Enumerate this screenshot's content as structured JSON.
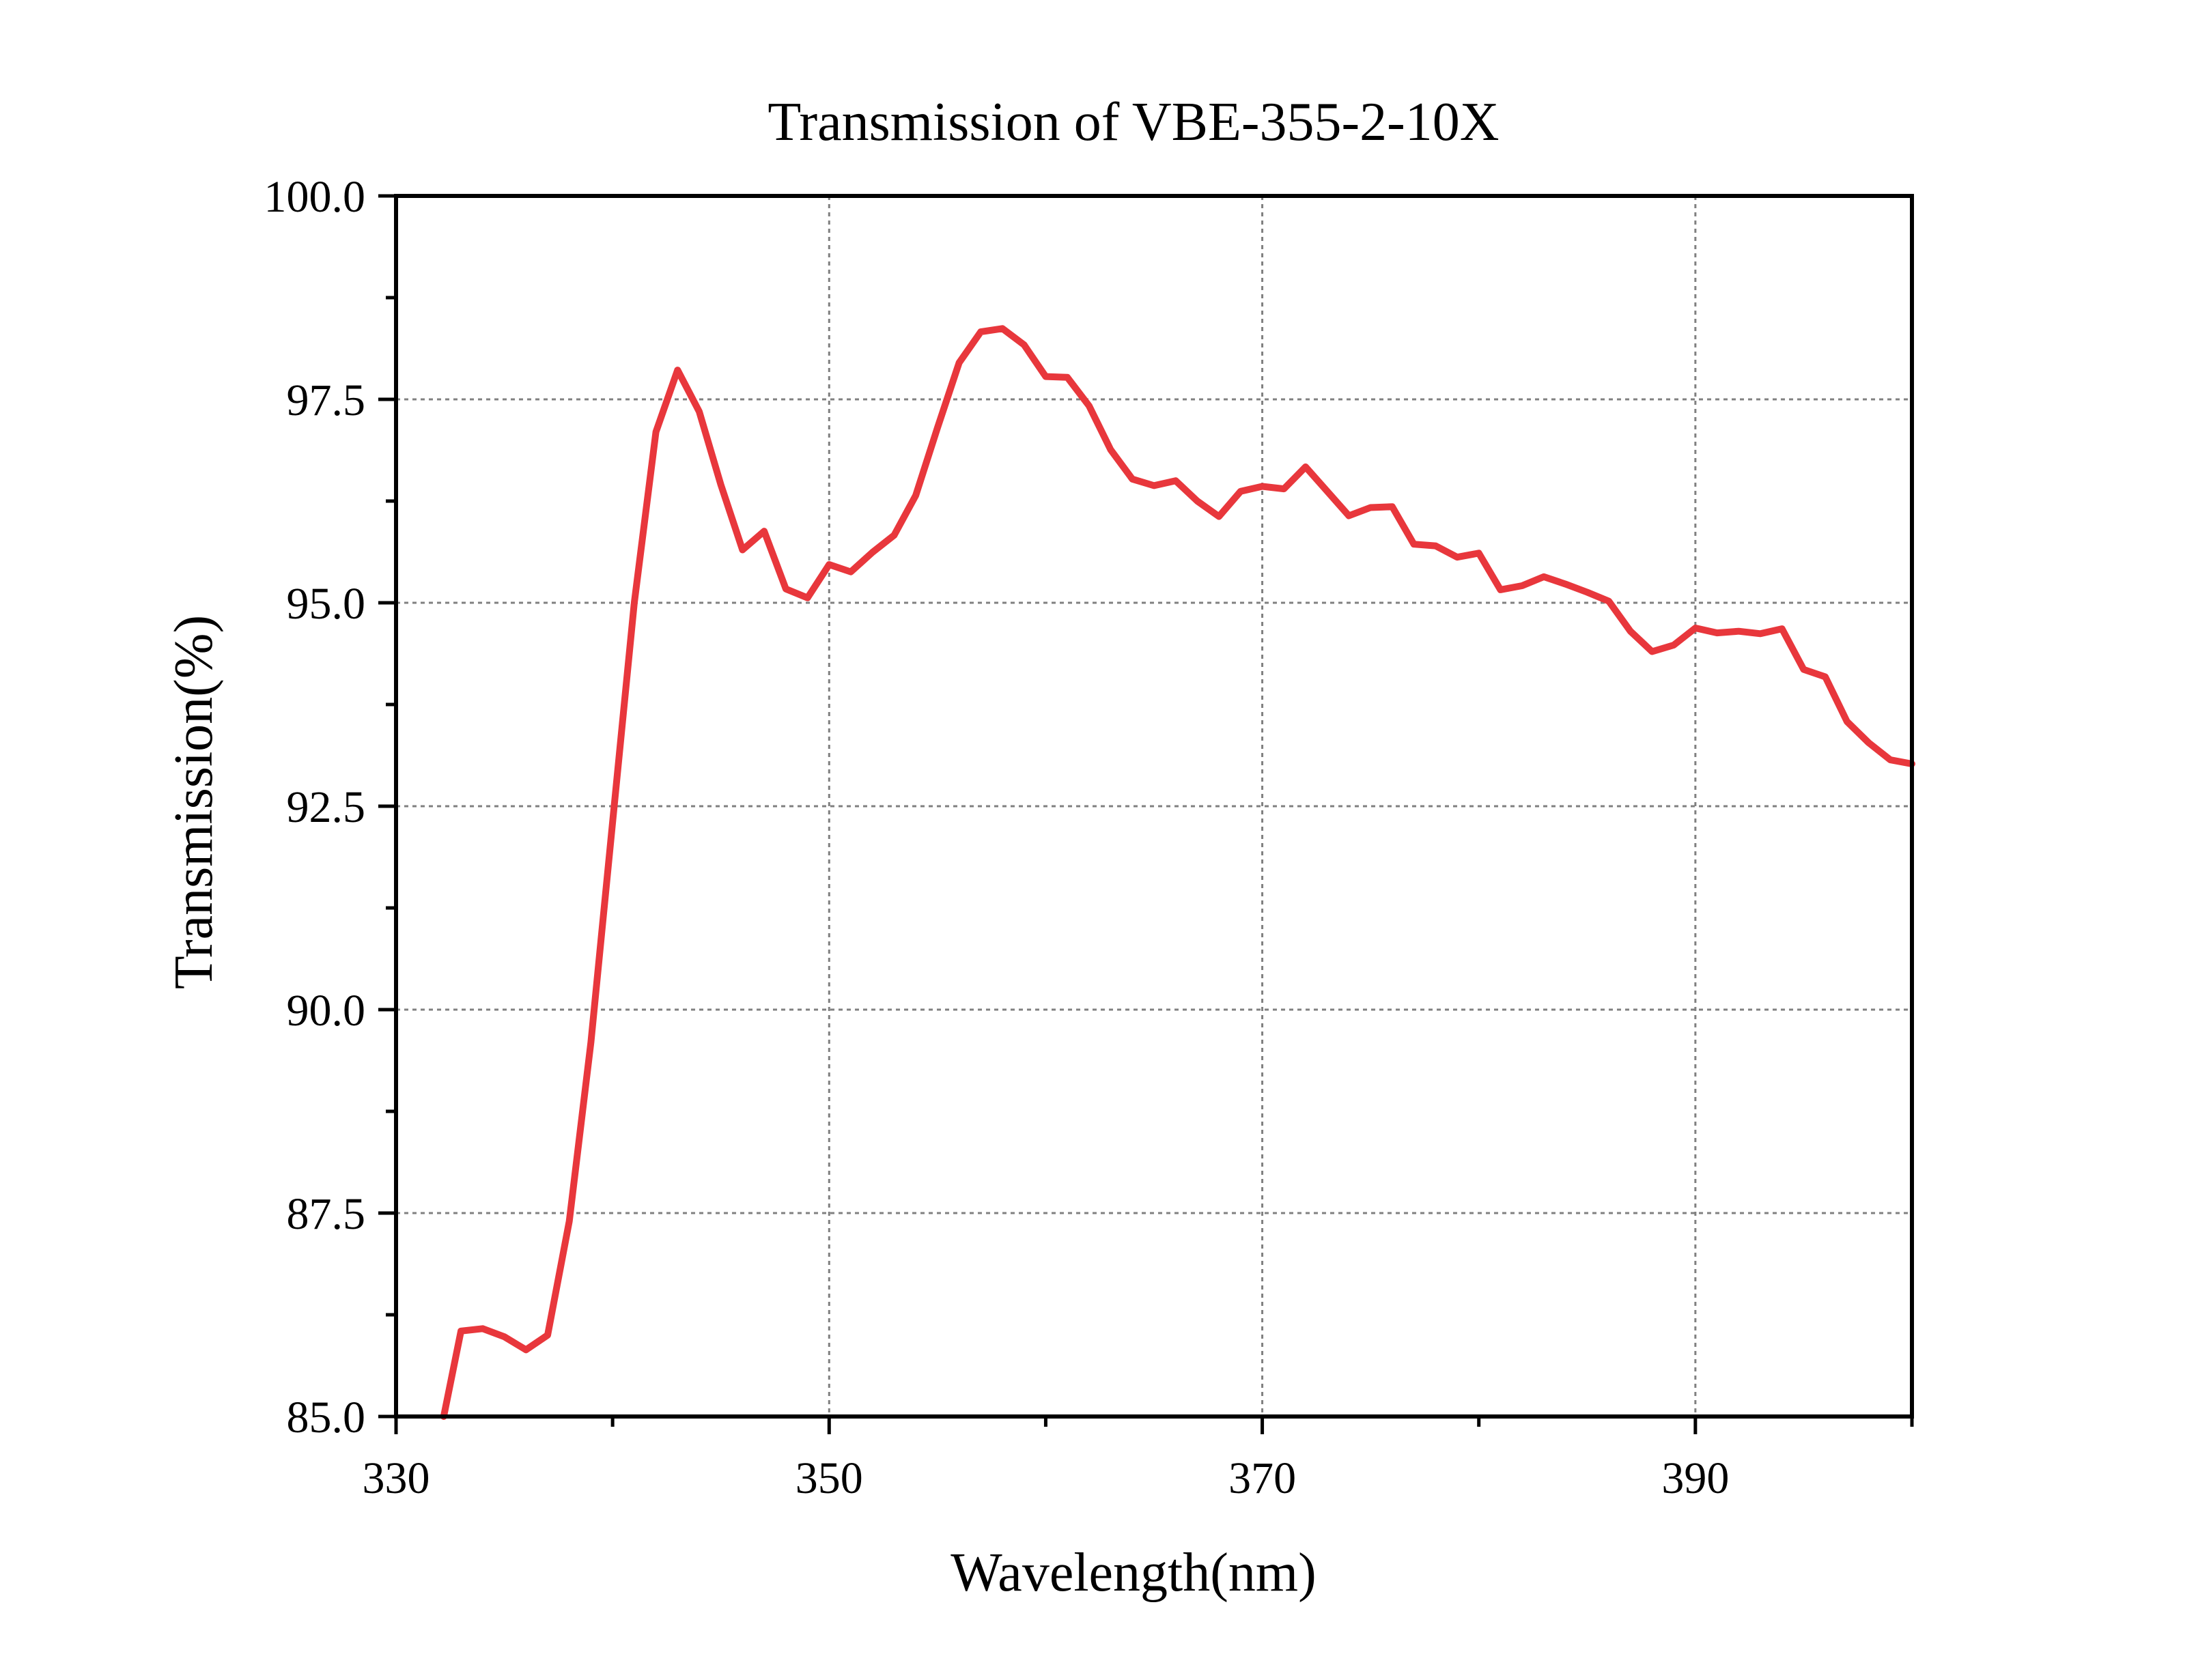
{
  "chart_data": {
    "type": "line",
    "title": "Transmission of VBE-355-2-10X",
    "xlabel": "Wavelength(nm)",
    "ylabel": "Transmission(%)",
    "xlim": [
      330,
      400
    ],
    "ylim": [
      85.0,
      100.0
    ],
    "xticks": [
      330,
      350,
      370,
      390
    ],
    "xtick_labels": [
      "330",
      "350",
      "370",
      "390"
    ],
    "xminor": [
      340,
      360,
      380,
      400
    ],
    "yticks": [
      85.0,
      87.5,
      90.0,
      92.5,
      95.0,
      97.5,
      100.0
    ],
    "ytick_labels": [
      "85.0",
      "87.5",
      "90.0",
      "92.5",
      "95.0",
      "97.5",
      "100.0"
    ],
    "yminor": [
      86.25,
      88.75,
      91.25,
      93.75,
      96.25,
      98.75
    ],
    "grid": true,
    "series": [
      {
        "color": "#e8373c",
        "x": [
          332.2,
          333,
          334,
          335,
          336,
          337,
          338,
          339,
          340,
          341,
          342,
          343,
          344,
          345,
          346,
          347,
          348,
          349,
          350,
          351,
          352,
          353,
          354,
          355,
          356,
          357,
          358,
          359,
          360,
          361,
          362,
          363,
          364,
          365,
          366,
          367,
          368,
          369,
          370,
          371,
          372,
          373,
          374,
          375,
          376,
          377,
          378,
          379,
          380,
          381,
          382,
          383,
          384,
          385,
          386,
          387,
          388,
          389,
          390,
          391,
          392,
          393,
          394,
          395,
          396,
          397,
          398,
          399,
          400
        ],
        "y": [
          85.0,
          86.05,
          86.08,
          85.98,
          85.82,
          86.0,
          87.4,
          89.6,
          92.3,
          95.0,
          97.1,
          97.86,
          97.35,
          96.45,
          95.65,
          95.88,
          95.17,
          95.06,
          95.47,
          95.38,
          95.62,
          95.83,
          96.32,
          97.15,
          97.95,
          98.33,
          98.37,
          98.17,
          97.78,
          97.77,
          97.42,
          96.88,
          96.52,
          96.44,
          96.5,
          96.25,
          96.06,
          96.37,
          96.43,
          96.4,
          96.67,
          96.37,
          96.07,
          96.17,
          96.18,
          95.72,
          95.7,
          95.56,
          95.61,
          95.16,
          95.21,
          95.32,
          95.23,
          95.13,
          95.02,
          94.65,
          94.4,
          94.48,
          94.69,
          94.63,
          94.65,
          94.62,
          94.68,
          94.18,
          94.09,
          93.54,
          93.28,
          93.07,
          93.02
        ]
      }
    ]
  }
}
